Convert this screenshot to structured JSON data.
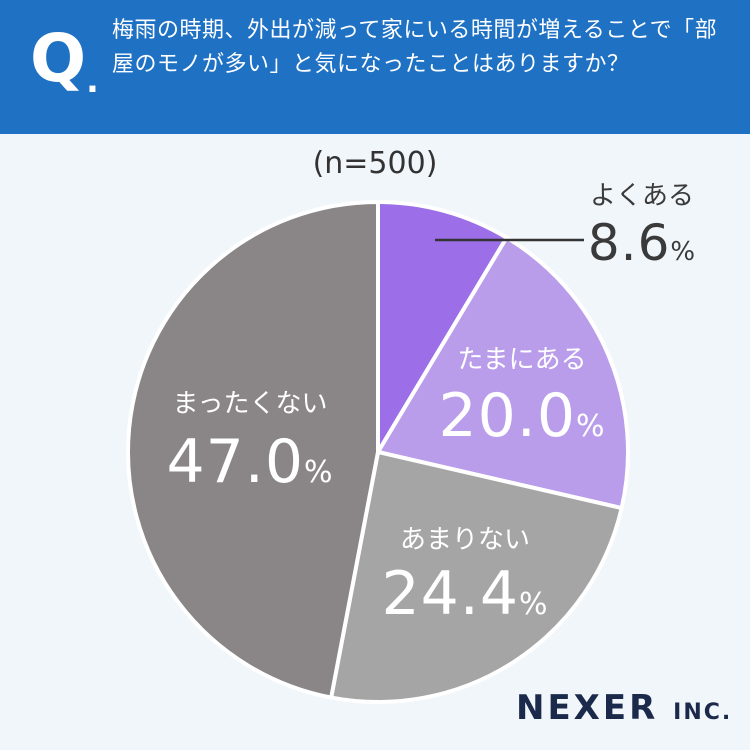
{
  "header": {
    "q_mark": "Q",
    "q_dot": ".",
    "question": "梅雨の時期、外出が減って家にいる時間が増えることで「部屋のモノが多い」と気になったことはありますか？"
  },
  "sample_size": "(n=500)",
  "brand": {
    "name": "NEXER",
    "suffix": "INC."
  },
  "colors": {
    "header_bg": "#1f71c4",
    "background": "#f1f6fb",
    "yoku": "#9c6fe9",
    "tama": "#b99deb",
    "amari": "#a6a5a6",
    "mattaku": "#8a8687"
  },
  "chart_data": {
    "type": "pie",
    "start": "12 o'clock",
    "direction": "clockwise",
    "unit": "%",
    "slices": [
      {
        "label": "よくある",
        "value": 8.6,
        "display": "8.6",
        "color": "#9c6fe9",
        "label_outside": true
      },
      {
        "label": "たまにある",
        "value": 20.0,
        "display": "20.0",
        "color": "#b99deb",
        "label_outside": false
      },
      {
        "label": "あまりない",
        "value": 24.4,
        "display": "24.4",
        "color": "#a6a5a6",
        "label_outside": false
      },
      {
        "label": "まったくない",
        "value": 47.0,
        "display": "47.0",
        "color": "#8a8687",
        "label_outside": false
      }
    ]
  }
}
